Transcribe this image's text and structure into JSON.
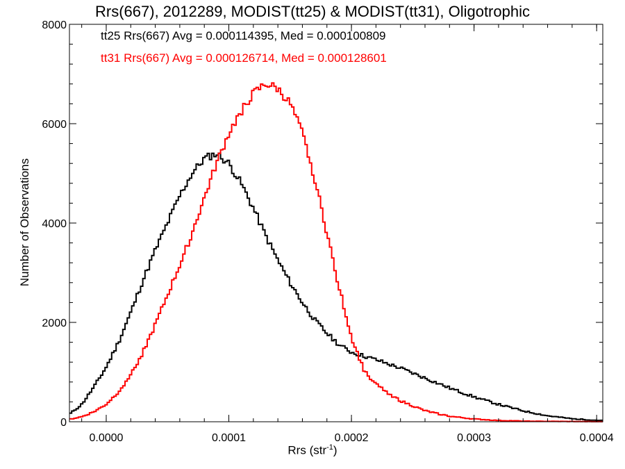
{
  "chart_data": {
    "type": "line",
    "style": "histogram-step",
    "title": "Rrs(667), 2012289, MODIST(tt25) & MODIST(tt31), Oligotrophic",
    "xlabel": "Rrs (str⁻¹)",
    "ylabel": "Number of Observations",
    "xlim": [
      -3e-05,
      0.000405
    ],
    "ylim": [
      0,
      8000
    ],
    "x_ticks": [
      0.0,
      0.0001,
      0.0002,
      0.0003,
      0.0004
    ],
    "x_tick_labels": [
      "0.0000",
      "0.0001",
      "0.0002",
      "0.0003",
      "0.0004"
    ],
    "y_ticks": [
      0,
      2000,
      4000,
      6000,
      8000
    ],
    "y_tick_labels": [
      "0",
      "2000",
      "4000",
      "6000",
      "8000"
    ],
    "grid": false,
    "annotations": [
      {
        "text": "tt25 Rrs(667) Avg = 0.000114395, Med = 0.000100809",
        "color": "#000000"
      },
      {
        "text": "tt31 Rrs(667) Avg = 0.000126714, Med = 0.000128601",
        "color": "#ff0000"
      }
    ],
    "series": [
      {
        "color": "#000000",
        "points": [
          [
            -3e-05,
            150
          ],
          [
            -2e-05,
            350
          ],
          [
            -1e-05,
            700
          ],
          [
            0.0,
            1100
          ],
          [
            1e-05,
            1600
          ],
          [
            2e-05,
            2200
          ],
          [
            3e-05,
            2850
          ],
          [
            4e-05,
            3450
          ],
          [
            5e-05,
            4000
          ],
          [
            6e-05,
            4550
          ],
          [
            7e-05,
            5000
          ],
          [
            8e-05,
            5300
          ],
          [
            9e-05,
            5400
          ],
          [
            0.0001,
            5200
          ],
          [
            0.00011,
            4800
          ],
          [
            0.00012,
            4300
          ],
          [
            0.00013,
            3750
          ],
          [
            0.00014,
            3250
          ],
          [
            0.00015,
            2800
          ],
          [
            0.00016,
            2400
          ],
          [
            0.00017,
            2050
          ],
          [
            0.00018,
            1780
          ],
          [
            0.00019,
            1550
          ],
          [
            0.0002,
            1400
          ],
          [
            0.00022,
            1250
          ],
          [
            0.00024,
            1080
          ],
          [
            0.00026,
            880
          ],
          [
            0.00028,
            680
          ],
          [
            0.0003,
            500
          ],
          [
            0.00032,
            350
          ],
          [
            0.00034,
            220
          ],
          [
            0.00036,
            120
          ],
          [
            0.00038,
            60
          ],
          [
            0.0004,
            30
          ]
        ]
      },
      {
        "color": "#ff0000",
        "points": [
          [
            -3e-05,
            50
          ],
          [
            -2e-05,
            100
          ],
          [
            -1e-05,
            200
          ],
          [
            0.0,
            350
          ],
          [
            1e-05,
            600
          ],
          [
            2e-05,
            950
          ],
          [
            3e-05,
            1400
          ],
          [
            4e-05,
            1950
          ],
          [
            5e-05,
            2550
          ],
          [
            6e-05,
            3150
          ],
          [
            7e-05,
            3800
          ],
          [
            8e-05,
            4500
          ],
          [
            9e-05,
            5200
          ],
          [
            0.0001,
            5800
          ],
          [
            0.00011,
            6250
          ],
          [
            0.00012,
            6600
          ],
          [
            0.00013,
            6800
          ],
          [
            0.00014,
            6700
          ],
          [
            0.00015,
            6400
          ],
          [
            0.00016,
            5800
          ],
          [
            0.00017,
            4900
          ],
          [
            0.00018,
            3800
          ],
          [
            0.00019,
            2700
          ],
          [
            0.0002,
            1700
          ],
          [
            0.00021,
            1050
          ],
          [
            0.00022,
            750
          ],
          [
            0.00023,
            580
          ],
          [
            0.00024,
            420
          ],
          [
            0.00026,
            220
          ],
          [
            0.00028,
            110
          ],
          [
            0.0003,
            55
          ],
          [
            0.00032,
            25
          ],
          [
            0.00035,
            10
          ],
          [
            0.0004,
            2
          ]
        ]
      }
    ]
  }
}
